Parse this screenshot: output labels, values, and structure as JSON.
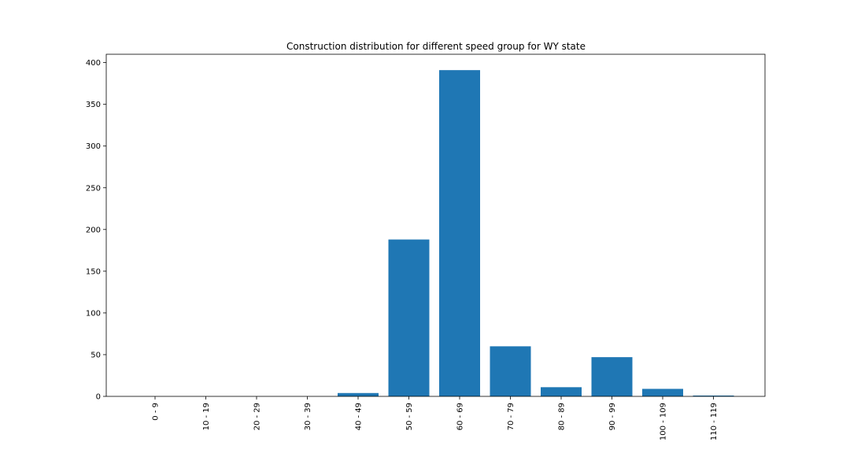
{
  "chart_data": {
    "type": "bar",
    "title": "Construction distribution for different speed group for WY state",
    "xlabel": "",
    "ylabel": "",
    "categories": [
      "0 - 9",
      "10 - 19",
      "20 - 29",
      "30 - 39",
      "40 - 49",
      "50 - 59",
      "60 - 69",
      "70 - 79",
      "80 - 89",
      "90 - 99",
      "100 - 109",
      "110 - 119"
    ],
    "values": [
      0,
      0,
      0,
      0,
      4,
      188,
      391,
      60,
      11,
      47,
      9,
      1
    ],
    "ylim": [
      0,
      410
    ],
    "yticks": [
      0,
      50,
      100,
      150,
      200,
      250,
      300,
      350,
      400
    ],
    "bar_color": "#1f77b4",
    "grid": false,
    "legend": "none"
  }
}
